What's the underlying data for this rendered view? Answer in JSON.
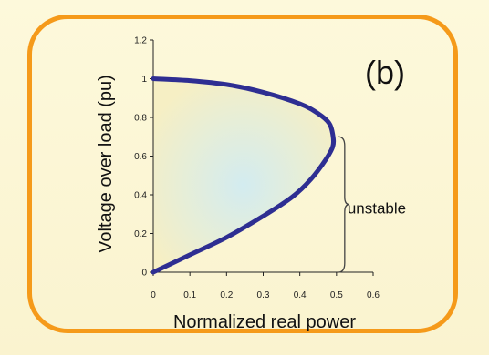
{
  "chart_data": {
    "type": "line",
    "panel_label": "(b)",
    "xlabel": "Normalized real power",
    "ylabel": "Voltage over load (pu)",
    "xlim": [
      0,
      0.6
    ],
    "ylim": [
      0,
      1.2
    ],
    "x_ticks": [
      "0",
      "0.1",
      "0.2",
      "0.3",
      "0.4",
      "0.5",
      "0.6"
    ],
    "y_ticks": [
      "0",
      "0.2",
      "0.4",
      "0.6",
      "0.8",
      "1",
      "1.2"
    ],
    "annotation": "unstable",
    "annotation_range": [
      0,
      0.7
    ],
    "series": [
      {
        "color": "#2e2e92",
        "points": [
          [
            0,
            1.0
          ],
          [
            0.1,
            0.99
          ],
          [
            0.2,
            0.97
          ],
          [
            0.3,
            0.93
          ],
          [
            0.4,
            0.87
          ],
          [
            0.45,
            0.82
          ],
          [
            0.48,
            0.77
          ],
          [
            0.49,
            0.71
          ],
          [
            0.49,
            0.65
          ],
          [
            0.47,
            0.58
          ],
          [
            0.43,
            0.48
          ],
          [
            0.38,
            0.39
          ],
          [
            0.3,
            0.29
          ],
          [
            0.2,
            0.18
          ],
          [
            0.1,
            0.09
          ],
          [
            0,
            0.0
          ]
        ]
      }
    ],
    "grid": false,
    "colors": {
      "curve": "#2e2e92",
      "frame": "#f59a1a",
      "fill_outer": "#f6efc2",
      "fill_inner": "#d7eef0"
    }
  }
}
